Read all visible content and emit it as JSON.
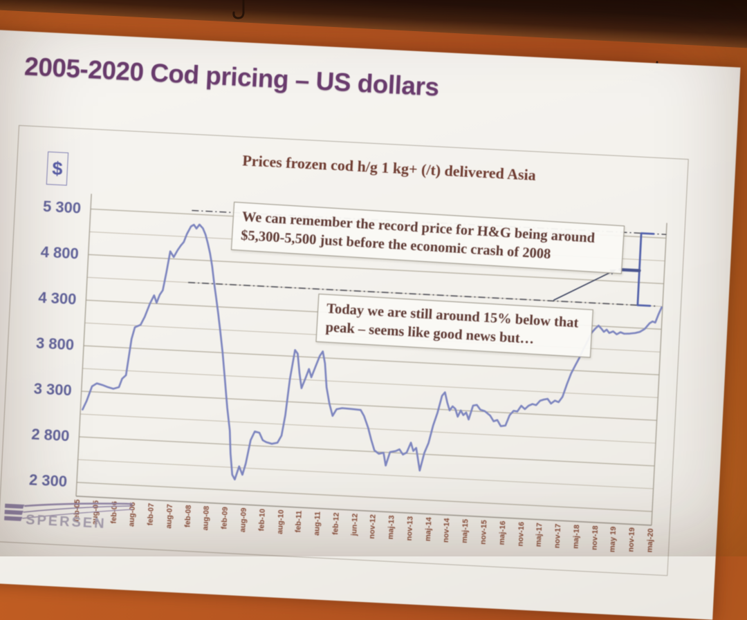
{
  "scene": {
    "wall_color": "#b35320",
    "ceiling_band_color": "#22100a",
    "hooks": [
      {
        "name": "ceiling-hook-left"
      },
      {
        "name": "ceiling-hook-right"
      }
    ]
  },
  "slide": {
    "title": "2005-2020 Cod pricing – US dollars",
    "title_color": "#6a3c6e",
    "logo": {
      "brand": "ESPERSEN",
      "icon_word": "SPERSEN"
    }
  },
  "chart_data": {
    "type": "line",
    "title": "Prices frozen cod h/g 1 kg+ (/t) delivered Asia",
    "y_axis_badge": "$",
    "unit": "USD per tonne",
    "ylim": [
      2300,
      5500
    ],
    "y_tick_labels": [
      "5 300",
      "4 800",
      "4 300",
      "3 800",
      "3 300",
      "2 800",
      "2 300"
    ],
    "y_tick_values": [
      5300,
      4800,
      4300,
      3800,
      3300,
      2800,
      2300
    ],
    "y_minor_gridlines": [
      5050,
      4550,
      4050,
      3550,
      3050,
      2550
    ],
    "x_tick_labels": [
      "feb-05",
      "aug-05",
      "feb-06",
      "aug-06",
      "feb-07",
      "aug-07",
      "feb-08",
      "aug-08",
      "feb-09",
      "aug-09",
      "feb-10",
      "aug-10",
      "feb-11",
      "aug-11",
      "feb-12",
      "jun-12",
      "nov-12",
      "maj-13",
      "nov-13",
      "maj-14",
      "nov-14",
      "maj-15",
      "nov-15",
      "maj-16",
      "nov-16",
      "maj-17",
      "nov-17",
      "maj-18",
      "nov-18",
      "may 19",
      "nov-19",
      "maj-20"
    ],
    "grid": "horizontal major and minor lines, no vertical grid",
    "legend": "none",
    "line_color": "#7d85bf",
    "series": [
      {
        "name": "Frozen cod h/g 1 kg+ price delivered Asia ($/t)",
        "color": "#7d85bf",
        "points_tick_value": [
          [
            0,
            3100
          ],
          [
            0.2,
            3200
          ],
          [
            0.45,
            3360
          ],
          [
            0.7,
            3395
          ],
          [
            1,
            3380
          ],
          [
            1.3,
            3360
          ],
          [
            1.6,
            3345
          ],
          [
            1.9,
            3365
          ],
          [
            2.05,
            3460
          ],
          [
            2.25,
            3500
          ],
          [
            2.45,
            3900
          ],
          [
            2.6,
            4030
          ],
          [
            2.9,
            4060
          ],
          [
            3.1,
            4150
          ],
          [
            3.35,
            4300
          ],
          [
            3.55,
            4390
          ],
          [
            3.7,
            4310
          ],
          [
            3.85,
            4400
          ],
          [
            4,
            4450
          ],
          [
            4.15,
            4650
          ],
          [
            4.3,
            4880
          ],
          [
            4.5,
            4820
          ],
          [
            4.7,
            4900
          ],
          [
            4.85,
            4950
          ],
          [
            5,
            4990
          ],
          [
            5.15,
            5080
          ],
          [
            5.35,
            5165
          ],
          [
            5.5,
            5185
          ],
          [
            5.65,
            5145
          ],
          [
            5.8,
            5190
          ],
          [
            6,
            5150
          ],
          [
            6.15,
            5085
          ],
          [
            6.3,
            4990
          ],
          [
            6.45,
            4880
          ],
          [
            6.6,
            4740
          ],
          [
            6.75,
            4560
          ],
          [
            6.9,
            4400
          ],
          [
            7.05,
            4230
          ],
          [
            7.2,
            4050
          ],
          [
            7.4,
            3800
          ],
          [
            7.6,
            3500
          ],
          [
            7.8,
            3200
          ],
          [
            8,
            2950
          ],
          [
            8.1,
            2700
          ],
          [
            8.25,
            2470
          ],
          [
            8.4,
            2420
          ],
          [
            8.6,
            2565
          ],
          [
            8.8,
            2475
          ],
          [
            8.95,
            2600
          ],
          [
            9.15,
            2860
          ],
          [
            9.35,
            2955
          ],
          [
            9.6,
            2945
          ],
          [
            9.8,
            2865
          ],
          [
            10,
            2845
          ],
          [
            10.3,
            2830
          ],
          [
            10.6,
            2845
          ],
          [
            10.8,
            2925
          ],
          [
            10.95,
            3150
          ],
          [
            11.1,
            3550
          ],
          [
            11.3,
            3870
          ],
          [
            11.45,
            3830
          ],
          [
            11.6,
            3620
          ],
          [
            11.75,
            3455
          ],
          [
            11.95,
            3575
          ],
          [
            12.1,
            3670
          ],
          [
            12.25,
            3580
          ],
          [
            12.45,
            3700
          ],
          [
            12.65,
            3820
          ],
          [
            12.8,
            3870
          ],
          [
            12.95,
            3740
          ],
          [
            13.1,
            3480
          ],
          [
            13.3,
            3300
          ],
          [
            13.5,
            3170
          ],
          [
            13.7,
            3245
          ],
          [
            14,
            3260
          ],
          [
            14.5,
            3255
          ],
          [
            15,
            3250
          ],
          [
            15.2,
            3185
          ],
          [
            15.45,
            3060
          ],
          [
            15.65,
            2930
          ],
          [
            15.85,
            2815
          ],
          [
            16.1,
            2780
          ],
          [
            16.35,
            2795
          ],
          [
            16.5,
            2655
          ],
          [
            16.7,
            2805
          ],
          [
            17,
            2820
          ],
          [
            17.2,
            2840
          ],
          [
            17.4,
            2785
          ],
          [
            17.6,
            2810
          ],
          [
            17.8,
            2920
          ],
          [
            17.95,
            2830
          ],
          [
            18.1,
            2865
          ],
          [
            18.35,
            2620
          ],
          [
            18.55,
            2815
          ],
          [
            18.75,
            2925
          ],
          [
            18.95,
            3120
          ],
          [
            19.15,
            3260
          ],
          [
            19.35,
            3450
          ],
          [
            19.5,
            3490
          ],
          [
            19.65,
            3380
          ],
          [
            19.8,
            3295
          ],
          [
            19.95,
            3340
          ],
          [
            20.1,
            3315
          ],
          [
            20.25,
            3230
          ],
          [
            20.4,
            3300
          ],
          [
            20.55,
            3250
          ],
          [
            20.7,
            3280
          ],
          [
            20.85,
            3205
          ],
          [
            21.05,
            3360
          ],
          [
            21.25,
            3370
          ],
          [
            21.45,
            3320
          ],
          [
            21.7,
            3305
          ],
          [
            22,
            3260
          ],
          [
            22.2,
            3200
          ],
          [
            22.4,
            3215
          ],
          [
            22.6,
            3150
          ],
          [
            22.85,
            3160
          ],
          [
            23.05,
            3275
          ],
          [
            23.25,
            3325
          ],
          [
            23.45,
            3320
          ],
          [
            23.65,
            3385
          ],
          [
            23.85,
            3350
          ],
          [
            24.05,
            3390
          ],
          [
            24.25,
            3410
          ],
          [
            24.45,
            3400
          ],
          [
            24.65,
            3450
          ],
          [
            24.85,
            3465
          ],
          [
            25.05,
            3475
          ],
          [
            25.25,
            3425
          ],
          [
            25.45,
            3460
          ],
          [
            25.65,
            3445
          ],
          [
            25.85,
            3505
          ],
          [
            26.05,
            3645
          ],
          [
            26.25,
            3765
          ],
          [
            26.45,
            3855
          ],
          [
            26.65,
            3940
          ],
          [
            26.85,
            4040
          ],
          [
            27.05,
            4130
          ],
          [
            27.25,
            4225
          ],
          [
            27.45,
            4275
          ],
          [
            27.6,
            4305
          ],
          [
            27.75,
            4275
          ],
          [
            27.9,
            4240
          ],
          [
            28.05,
            4265
          ],
          [
            28.2,
            4230
          ],
          [
            28.4,
            4250
          ],
          [
            28.6,
            4220
          ],
          [
            28.8,
            4245
          ],
          [
            29,
            4230
          ],
          [
            29.3,
            4235
          ],
          [
            29.6,
            4245
          ],
          [
            29.85,
            4260
          ],
          [
            30.1,
            4295
          ],
          [
            30.35,
            4360
          ],
          [
            30.5,
            4380
          ],
          [
            30.65,
            4370
          ],
          [
            30.8,
            4460
          ],
          [
            30.95,
            4540
          ]
        ]
      }
    ],
    "reference_lines": [
      {
        "name": "record-peak-level",
        "value": 5340,
        "style": "dash-dot",
        "from_tick": 5.35,
        "to_tick": 31.2
      },
      {
        "name": "today-level",
        "value": 4550,
        "style": "dash-dot",
        "from_tick": 5.35,
        "to_tick": 30.7
      }
    ],
    "annotations": [
      {
        "name": "record-note",
        "text": "We can remember the record price for H&G being around $5,300-5,500 just before the economic crash of 2008"
      },
      {
        "name": "today-note",
        "text": "Today we are still around 15% below that peak – seems like good news but…"
      }
    ],
    "callout": {
      "arrow_from_tick_value": [
        25.1,
        4550
      ],
      "arrow_to_tick_value": [
        28.4,
        4930
      ],
      "bracket_tick": 29.65,
      "bracket_top_value": 5340,
      "bracket_bottom_value": 4550,
      "bracket_mid_value": 4930
    }
  }
}
